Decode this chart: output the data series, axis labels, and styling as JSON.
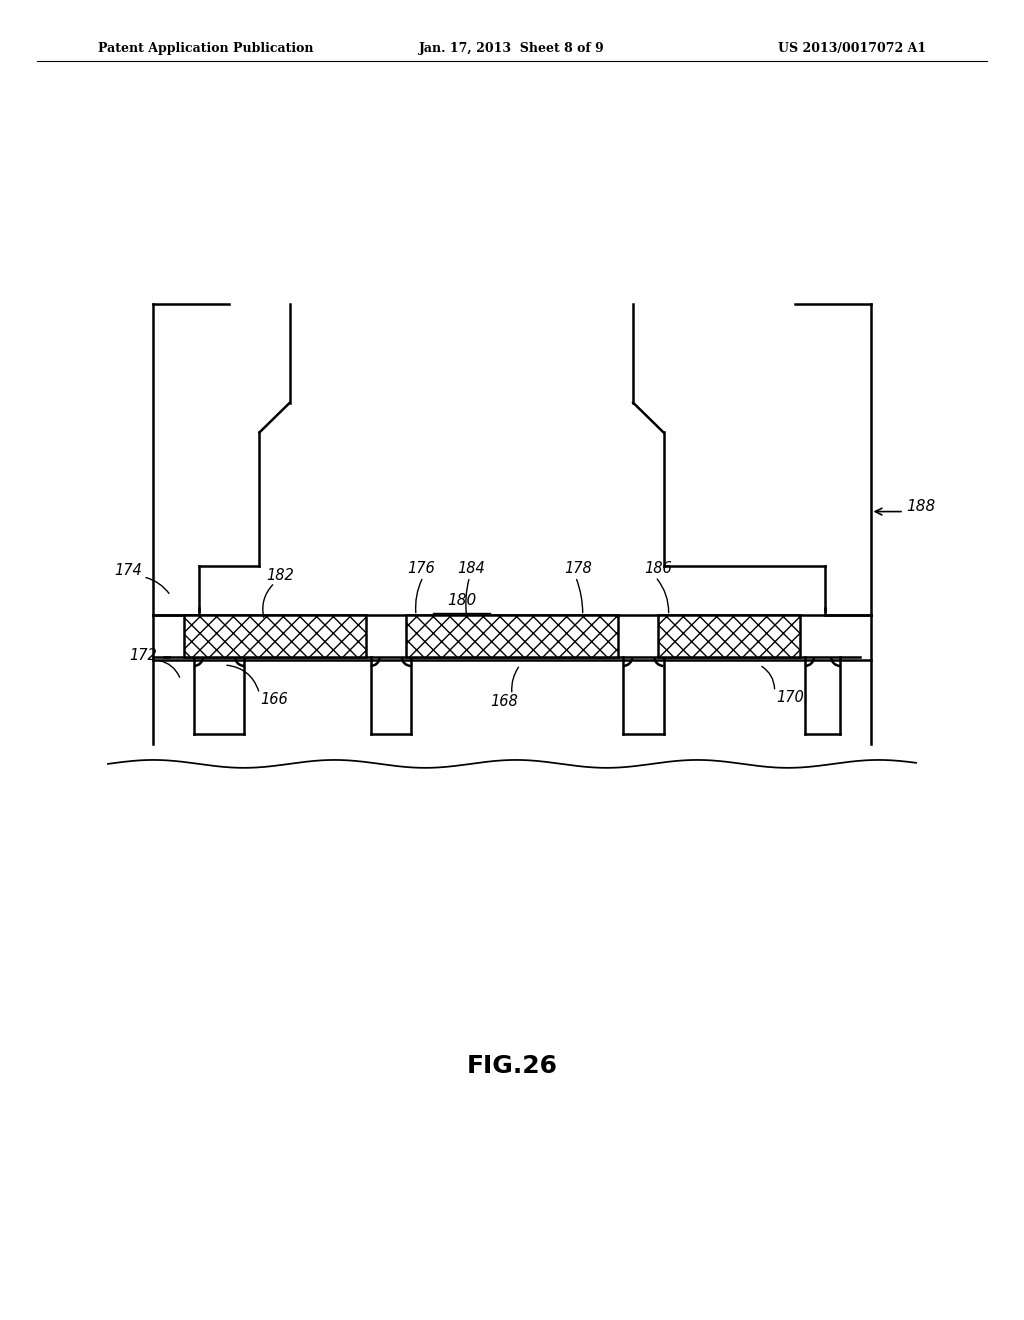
{
  "title_left": "Patent Application Publication",
  "title_mid": "Jan. 17, 2013  Sheet 8 of 9",
  "title_right": "US 2013/0017072 A1",
  "fig_label": "FIG.26",
  "background_color": "#ffffff",
  "line_color": "#000000"
}
